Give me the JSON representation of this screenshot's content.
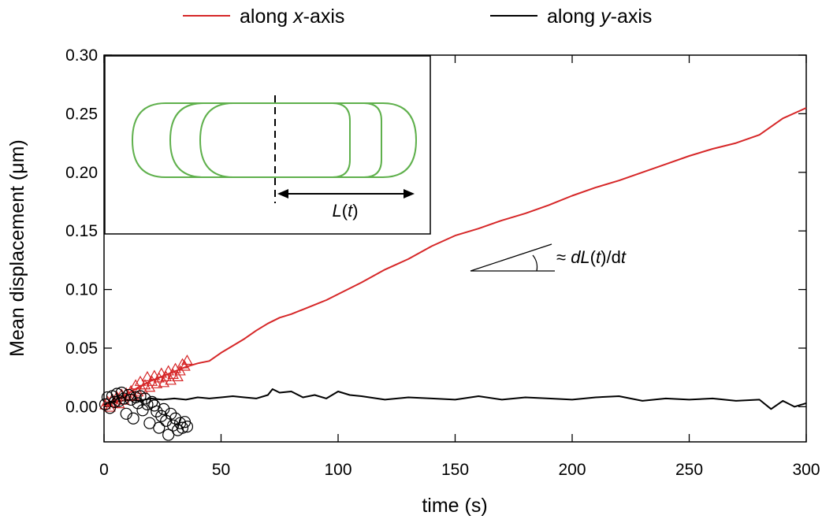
{
  "chart_data": {
    "type": "line",
    "xlabel": "time (s)",
    "ylabel": "Mean displacement (μm)",
    "xlim": [
      0,
      300
    ],
    "ylim": [
      -0.03,
      0.3
    ],
    "xticks": [
      0,
      50,
      100,
      150,
      200,
      250,
      300
    ],
    "yticks": [
      0.0,
      0.05,
      0.1,
      0.15,
      0.2,
      0.25,
      0.3
    ],
    "ytick_labels": [
      "0.00",
      "0.05",
      "0.10",
      "0.15",
      "0.20",
      "0.25",
      "0.30"
    ],
    "grid": false,
    "legend_position": "top",
    "legend": {
      "x_series": {
        "prefix": "along ",
        "italic": "x",
        "suffix": "-axis"
      },
      "y_series": {
        "prefix": "along ",
        "italic": "y",
        "suffix": "-axis"
      }
    },
    "colors": {
      "x_series": "#d62728",
      "y_series": "#000000",
      "inset_cell": "#5fb04c"
    },
    "series": [
      {
        "key": "x_series",
        "style": "line",
        "x": [
          0,
          5,
          10,
          15,
          20,
          25,
          30,
          35,
          40,
          45,
          50,
          55,
          60,
          65,
          70,
          75,
          80,
          85,
          90,
          95,
          100,
          110,
          120,
          130,
          140,
          150,
          160,
          170,
          180,
          190,
          200,
          210,
          220,
          230,
          240,
          250,
          260,
          270,
          280,
          290,
          300
        ],
        "y": [
          0.0,
          0.006,
          0.011,
          0.017,
          0.022,
          0.026,
          0.03,
          0.034,
          0.037,
          0.039,
          0.046,
          0.052,
          0.058,
          0.065,
          0.071,
          0.076,
          0.079,
          0.083,
          0.087,
          0.091,
          0.096,
          0.106,
          0.117,
          0.126,
          0.137,
          0.146,
          0.152,
          0.159,
          0.165,
          0.172,
          0.18,
          0.187,
          0.193,
          0.2,
          0.207,
          0.214,
          0.22,
          0.225,
          0.232,
          0.246,
          0.255
        ]
      },
      {
        "key": "y_series",
        "style": "line",
        "x": [
          0,
          5,
          10,
          15,
          20,
          25,
          30,
          35,
          40,
          45,
          50,
          55,
          60,
          65,
          70,
          72,
          75,
          80,
          85,
          90,
          95,
          100,
          105,
          110,
          120,
          130,
          140,
          150,
          160,
          170,
          180,
          190,
          200,
          210,
          220,
          230,
          240,
          250,
          260,
          270,
          280,
          285,
          290,
          295,
          300
        ],
        "y": [
          0.002,
          0.004,
          0.006,
          0.005,
          0.007,
          0.006,
          0.007,
          0.006,
          0.008,
          0.007,
          0.008,
          0.009,
          0.008,
          0.007,
          0.01,
          0.015,
          0.012,
          0.013,
          0.008,
          0.01,
          0.007,
          0.013,
          0.01,
          0.009,
          0.006,
          0.008,
          0.007,
          0.006,
          0.009,
          0.006,
          0.008,
          0.007,
          0.006,
          0.008,
          0.009,
          0.005,
          0.007,
          0.006,
          0.007,
          0.005,
          0.006,
          -0.002,
          0.005,
          0.0,
          0.003
        ]
      },
      {
        "key": "x_series",
        "style": "triangle-markers",
        "x": [
          0.5,
          1.5,
          2.5,
          3.5,
          4.5,
          5.5,
          6.5,
          7.5,
          8.5,
          9.5,
          10.5,
          11.5,
          12.5,
          13.5,
          14.5,
          15.5,
          16.5,
          17.5,
          18.5,
          19.5,
          20.5,
          21.5,
          22.5,
          23.5,
          24.5,
          25.5,
          26.5,
          27.5,
          28.5,
          29.5,
          30.5,
          31.5,
          32.5,
          33.5,
          34.5,
          35.5
        ],
        "y": [
          0.001,
          0.004,
          -0.001,
          0.006,
          0.003,
          0.008,
          0.002,
          0.01,
          0.005,
          0.011,
          0.008,
          0.013,
          0.009,
          0.018,
          0.012,
          0.021,
          0.014,
          0.018,
          0.025,
          0.016,
          0.021,
          0.026,
          0.019,
          0.024,
          0.028,
          0.02,
          0.025,
          0.03,
          0.022,
          0.027,
          0.032,
          0.025,
          0.03,
          0.036,
          0.034,
          0.039
        ]
      },
      {
        "key": "y_series",
        "style": "circle-markers",
        "x": [
          0.5,
          1.5,
          2.5,
          3.5,
          4.5,
          5.5,
          6.5,
          7.5,
          8.5,
          9.5,
          10.5,
          11.5,
          12.5,
          13.5,
          14.5,
          15.5,
          16.5,
          17.5,
          18.5,
          19.5,
          20.5,
          21.5,
          22.5,
          23.5,
          24.5,
          25.5,
          26.5,
          27.5,
          28.5,
          29.5,
          30.5,
          31.5,
          32.5,
          33.5,
          34.5,
          35.5
        ],
        "y": [
          0.002,
          0.008,
          -0.001,
          0.009,
          0.004,
          0.011,
          0.005,
          0.012,
          0.007,
          -0.006,
          0.01,
          0.006,
          -0.01,
          0.008,
          0.003,
          0.009,
          -0.003,
          0.007,
          0.002,
          -0.014,
          0.004,
          0.001,
          -0.004,
          -0.018,
          -0.008,
          -0.002,
          -0.012,
          -0.024,
          -0.006,
          -0.016,
          -0.01,
          -0.02,
          -0.014,
          -0.018,
          -0.013,
          -0.017
        ]
      }
    ],
    "annotations": {
      "slope_label": {
        "prefix": "≈ ",
        "italic_1": "dL",
        "mid": "(",
        "italic_2": "t",
        "suffix_1": ")/d",
        "italic_3": "t"
      },
      "inset_label": {
        "italic_1": "L",
        "mid": "(",
        "italic_2": "t",
        "suffix": ")"
      }
    }
  }
}
